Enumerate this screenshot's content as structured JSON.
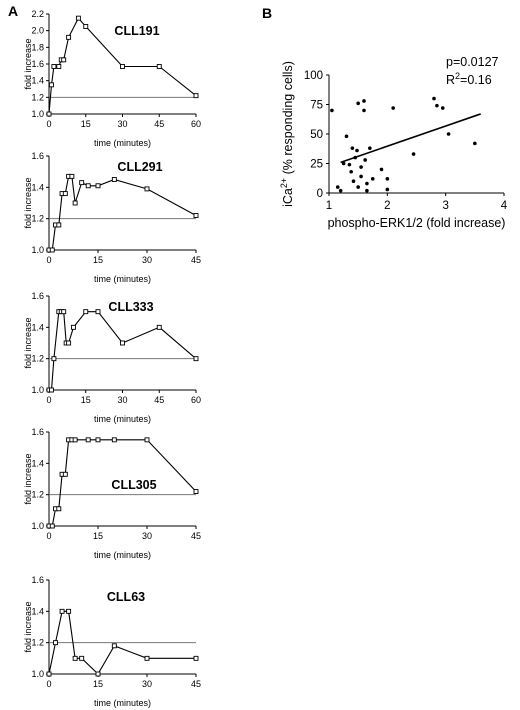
{
  "panels": {
    "a_label": "A",
    "b_label": "B"
  },
  "chart_data": [
    {
      "type": "line",
      "panel": "A",
      "title": "CLL191",
      "xlabel": "time (minutes)",
      "ylabel": "fold increase",
      "xlim": [
        0,
        60
      ],
      "ylim": [
        1.0,
        2.2
      ],
      "xticks": [
        0,
        15,
        30,
        45,
        60
      ],
      "yticks": [
        "1.0",
        "1.2",
        "1.4",
        "1.6",
        "1.8",
        "2.0",
        "2.2"
      ],
      "reference_line": 1.2,
      "x": [
        0,
        1,
        2,
        4,
        5,
        6,
        8,
        12,
        15,
        30,
        45,
        60
      ],
      "y": [
        1.0,
        1.35,
        1.57,
        1.57,
        1.65,
        1.65,
        1.92,
        2.15,
        2.05,
        1.57,
        1.57,
        1.22
      ]
    },
    {
      "type": "line",
      "panel": "A",
      "title": "CLL291",
      "xlabel": "time (minutes)",
      "ylabel": "fold increase",
      "xlim": [
        0,
        45
      ],
      "ylim": [
        1.0,
        1.6
      ],
      "xticks": [
        0,
        15,
        30,
        45
      ],
      "yticks": [
        "1.0",
        "1.2",
        "1.4",
        "1.6"
      ],
      "reference_line": 1.2,
      "x": [
        0,
        1,
        2,
        3,
        4,
        5,
        6,
        7,
        8,
        10,
        12,
        15,
        20,
        30,
        45
      ],
      "y": [
        1.0,
        1.0,
        1.16,
        1.16,
        1.36,
        1.36,
        1.47,
        1.47,
        1.3,
        1.43,
        1.41,
        1.41,
        1.45,
        1.39,
        1.22
      ]
    },
    {
      "type": "line",
      "panel": "A",
      "title": "CLL333",
      "xlabel": "time (minutes)",
      "ylabel": "fold increase",
      "xlim": [
        0,
        60
      ],
      "ylim": [
        1.0,
        1.6
      ],
      "xticks": [
        0,
        15,
        30,
        45,
        60
      ],
      "yticks": [
        "1.0",
        "1.2",
        "1.4",
        "1.6"
      ],
      "reference_line": 1.2,
      "x": [
        0,
        1,
        2,
        4,
        5,
        6,
        7,
        8,
        10,
        15,
        20,
        30,
        45,
        60
      ],
      "y": [
        1.0,
        1.0,
        1.2,
        1.5,
        1.5,
        1.5,
        1.3,
        1.3,
        1.4,
        1.5,
        1.5,
        1.3,
        1.4,
        1.2
      ]
    },
    {
      "type": "line",
      "panel": "A",
      "title": "CLL305",
      "xlabel": "time (minutes)",
      "ylabel": "fold increase",
      "xlim": [
        0,
        45
      ],
      "ylim": [
        1.0,
        1.6
      ],
      "xticks": [
        0,
        15,
        30,
        45
      ],
      "yticks": [
        "1.0",
        "1.2",
        "1.4",
        "1.6"
      ],
      "reference_line": 1.2,
      "x": [
        0,
        1,
        2,
        3,
        4,
        5,
        6,
        7,
        8,
        12,
        15,
        20,
        30,
        45
      ],
      "y": [
        1.0,
        1.0,
        1.11,
        1.11,
        1.33,
        1.33,
        1.55,
        1.55,
        1.55,
        1.55,
        1.55,
        1.55,
        1.55,
        1.22
      ]
    },
    {
      "type": "line",
      "panel": "A",
      "title": "CLL63",
      "xlabel": "time (minutes)",
      "ylabel": "fold increase",
      "xlim": [
        0,
        45
      ],
      "ylim": [
        1.0,
        1.6
      ],
      "xticks": [
        0,
        15,
        30,
        45
      ],
      "yticks": [
        "1.0",
        "1.2",
        "1.4",
        "1.6"
      ],
      "reference_line": 1.2,
      "x": [
        0,
        2,
        4,
        6,
        8,
        10,
        15,
        20,
        30,
        45
      ],
      "y": [
        1.0,
        1.2,
        1.4,
        1.4,
        1.1,
        1.1,
        1.0,
        1.18,
        1.1,
        1.1
      ]
    },
    {
      "type": "scatter",
      "panel": "B",
      "xlabel": "phospho-ERK1/2 (fold increase)",
      "ylabel_main": "iCa",
      "ylabel_sup": "2+",
      "ylabel_tail": " (% responding cells)",
      "xlim": [
        1,
        4
      ],
      "ylim": [
        0,
        100
      ],
      "xticks": [
        1,
        2,
        3,
        4
      ],
      "yticks": [
        0,
        25,
        50,
        75,
        100
      ],
      "annotation_p": "p=0.0127",
      "annotation_r_main": "R",
      "annotation_r_sup": "2",
      "annotation_r_tail": "=0.16",
      "fit_line": {
        "x": [
          1.2,
          3.6
        ],
        "y": [
          26,
          67
        ]
      },
      "points": [
        [
          1.05,
          70
        ],
        [
          1.15,
          5
        ],
        [
          1.2,
          2
        ],
        [
          1.25,
          25
        ],
        [
          1.3,
          48
        ],
        [
          1.35,
          24
        ],
        [
          1.38,
          18
        ],
        [
          1.4,
          38
        ],
        [
          1.42,
          10
        ],
        [
          1.45,
          30
        ],
        [
          1.48,
          36
        ],
        [
          1.5,
          76
        ],
        [
          1.5,
          5
        ],
        [
          1.55,
          22
        ],
        [
          1.55,
          14
        ],
        [
          1.6,
          78
        ],
        [
          1.6,
          70
        ],
        [
          1.62,
          28
        ],
        [
          1.65,
          8
        ],
        [
          1.65,
          2
        ],
        [
          1.7,
          38
        ],
        [
          1.75,
          12
        ],
        [
          1.9,
          20
        ],
        [
          2.0,
          12
        ],
        [
          2.0,
          3
        ],
        [
          2.1,
          72
        ],
        [
          2.45,
          33
        ],
        [
          2.8,
          80
        ],
        [
          2.85,
          74
        ],
        [
          2.95,
          72
        ],
        [
          3.05,
          50
        ],
        [
          3.5,
          42
        ]
      ]
    }
  ]
}
